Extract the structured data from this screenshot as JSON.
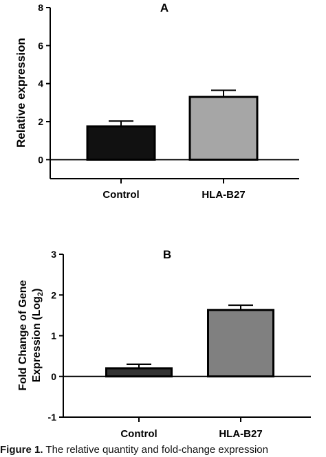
{
  "chart_data": [
    {
      "type": "bar",
      "panel_label": "A",
      "ylabel": "Relative expression",
      "categories": [
        "Control",
        "HLA-B27"
      ],
      "values": [
        1.75,
        3.3
      ],
      "errors": [
        0.28,
        0.35
      ],
      "colors": [
        "#111111",
        "#a6a6a6"
      ],
      "ylim": [
        -1,
        8
      ],
      "yticks": [
        0,
        2,
        4,
        6,
        8
      ],
      "grid": false
    },
    {
      "type": "bar",
      "panel_label": "B",
      "ylabel_line1": "Fold Change of Gene",
      "ylabel_line2_text": "Expression (Log",
      "ylabel_line2_sub": "2",
      "ylabel_line2_close": ")",
      "categories": [
        "Control",
        "HLA-B27"
      ],
      "values": [
        0.2,
        1.63
      ],
      "errors": [
        0.1,
        0.12
      ],
      "colors": [
        "#333333",
        "#808080"
      ],
      "ylim": [
        -1,
        3
      ],
      "yticks": [
        -1,
        0,
        1,
        2,
        3
      ],
      "grid": false
    }
  ],
  "caption": {
    "label": "Figure 1.",
    "text": "The relative quantity and fold-change expression"
  }
}
